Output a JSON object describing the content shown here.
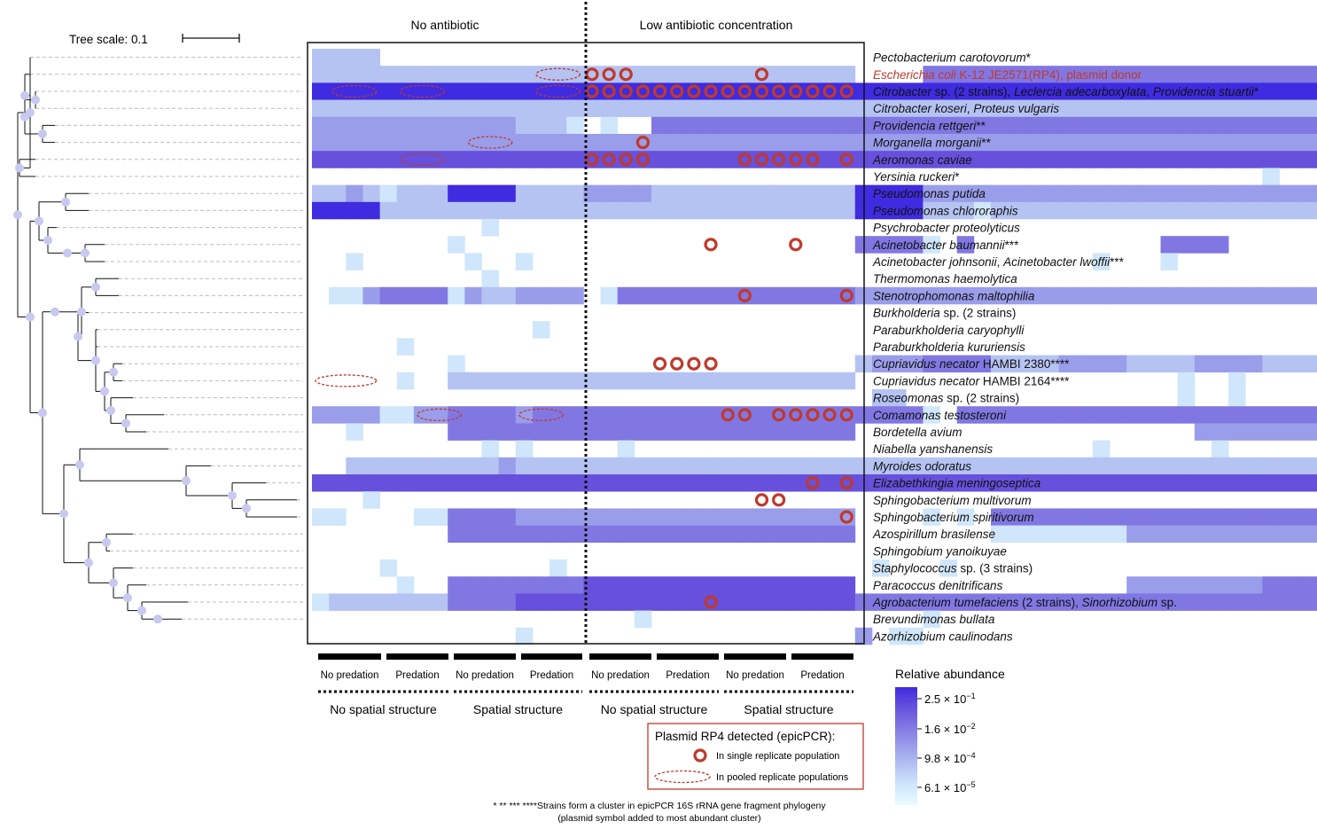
{
  "colors": {
    "scale": [
      "#e9fcff",
      "#cfe6fb",
      "#b5c3f3",
      "#9a9dea",
      "#8177e2",
      "#6650dc",
      "#3f2be0"
    ],
    "heatmap_border": "#111111",
    "plasmid_marker": "#c0392b",
    "highlight_text": "#c0392b",
    "tree_node": "#c8c8f0",
    "tree_guide": "#bbbbbb"
  },
  "tree": {
    "scale_label": "Tree scale: 0.1"
  },
  "chart_data": {
    "type": "heatmap",
    "condition_labels": [
      "No antibiotic",
      "Low antibiotic concentration"
    ],
    "predation_labels": [
      "No predation",
      "Predation",
      "No predation",
      "Predation",
      "No predation",
      "Predation",
      "No predation",
      "Predation"
    ],
    "structure_labels": [
      "No spatial structure",
      "Spatial structure",
      "No spatial structure",
      "Spatial structure"
    ],
    "replicates_per_treatment": 4,
    "legend": {
      "title": "Relative abundance",
      "tick_labels": [
        {
          "mantissa": "2.5 × 10",
          "exponent": "−1"
        },
        {
          "mantissa": "1.6 × 10",
          "exponent": "−2"
        },
        {
          "mantissa": "9.8 × 10",
          "exponent": "−4"
        },
        {
          "mantissa": "6.1 × 10",
          "exponent": "−5"
        }
      ]
    },
    "plasmid_legend": {
      "title": "Plasmid RP4 detected (epicPCR):",
      "single": "In single replicate population",
      "pooled": "In pooled replicate populations"
    },
    "footnote": [
      "* ** *** ****Strains form a cluster in epicPCR 16S rRNA gene fragment phylogeny",
      "(plasmid symbol added to most abundant cluster)"
    ],
    "rows": [
      {
        "parts": [
          {
            "t": "Pectobacterium carotovorum",
            "i": true
          },
          {
            "t": "*",
            "i": false
          }
        ],
        "highlight": false,
        "cells": "2222000000000000000000000000000000000000000000000000000000000000",
        "single": [],
        "pooled": []
      },
      {
        "parts": [
          {
            "t": "Escherichia coli",
            "i": true
          },
          {
            "t": " K-12 JE2571(RP4), plasmid donor",
            "i": false
          }
        ],
        "highlight": true,
        "cells": "2222222222222222222222222222222200004444444444444444444444444444",
        "single": [
          16,
          17,
          18,
          26
        ],
        "pooled": [
          [
            13,
            15
          ]
        ]
      },
      {
        "parts": [
          {
            "t": "Citrobacter",
            "i": true
          },
          {
            "t": " sp. (2 strains), ",
            "i": false
          },
          {
            "t": "Leclercia adecarboxylata",
            "i": true
          },
          {
            "t": ", ",
            "i": false
          },
          {
            "t": "Providencia stuartii",
            "i": true
          },
          {
            "t": "*",
            "i": false
          }
        ],
        "highlight": false,
        "cells": "6666666666666666666666666666666666666666666666666666666666666666",
        "single": [
          16,
          17,
          18,
          19,
          20,
          21,
          22,
          23,
          24,
          25,
          26,
          27,
          28,
          29,
          30,
          31
        ],
        "pooled": [
          [
            1,
            3
          ],
          [
            5,
            7
          ],
          [
            13,
            15
          ]
        ]
      },
      {
        "parts": [
          {
            "t": "Citrobacter koseri",
            "i": true
          },
          {
            "t": ", ",
            "i": false
          },
          {
            "t": "Proteus vulgaris",
            "i": true
          }
        ],
        "highlight": false,
        "cells": "2222222222222222222222222222222222222222222222222222222222222222",
        "single": [],
        "pooled": []
      },
      {
        "parts": [
          {
            "t": "Providencia rettgeri",
            "i": true
          },
          {
            "t": "**",
            "i": false
          }
        ],
        "highlight": false,
        "cells": "3333333333332221010044444444444444444444444444444444444444444444",
        "single": [],
        "pooled": []
      },
      {
        "parts": [
          {
            "t": "Morganella morganii",
            "i": true
          },
          {
            "t": "**",
            "i": false
          }
        ],
        "highlight": false,
        "cells": "3333333333333333333333333333333333333333333333333333333333333333",
        "single": [
          19
        ],
        "pooled": [
          [
            9,
            11
          ]
        ]
      },
      {
        "parts": [
          {
            "t": "Aeromonas caviae",
            "i": true
          }
        ],
        "highlight": false,
        "cells": "5555555555555555555555555555555555555555555555555555555555555555",
        "single": [
          16,
          17,
          18,
          19,
          25,
          26,
          27,
          28,
          29,
          31
        ],
        "pooled": [
          [
            5,
            7
          ]
        ]
      },
      {
        "parts": [
          {
            "t": "Yersinia ruckeri",
            "i": true
          },
          {
            "t": "*",
            "i": false
          }
        ],
        "highlight": false,
        "cells": "0000000000000000000000000000000000000000000000000000000010000000",
        "single": [],
        "pooled": []
      },
      {
        "parts": [
          {
            "t": "Pseudomonas putida",
            "i": true
          }
        ],
        "highlight": false,
        "cells": "2232122266662222333322222222222266663333333333333333333333333333",
        "single": [],
        "pooled": []
      },
      {
        "parts": [
          {
            "t": "Pseudomonas chlororaphis",
            "i": true
          }
        ],
        "highlight": false,
        "cells": "6666222222222222222222222222222266662221222222222222222222222222",
        "single": [],
        "pooled": []
      },
      {
        "parts": [
          {
            "t": "Psychrobacter proteolyticus",
            "i": true
          }
        ],
        "highlight": false,
        "cells": "0000000000100000000000000000000000000000000000000000000000000000",
        "single": [],
        "pooled": []
      },
      {
        "parts": [
          {
            "t": "Acinetobacter baumannii",
            "i": true
          },
          {
            "t": "***",
            "i": false
          }
        ],
        "highlight": false,
        "cells": "0000000010000000000000000000000044441040000000000044440000000000",
        "single": [
          23,
          28
        ],
        "pooled": []
      },
      {
        "parts": [
          {
            "t": "Acinetobacter johnsonii",
            "i": true
          },
          {
            "t": ", ",
            "i": false
          },
          {
            "t": "Acinetobacter lwoffii",
            "i": true
          },
          {
            "t": "***",
            "i": false
          }
        ],
        "highlight": false,
        "cells": "0010000001001000000000000000000000000000000000100010000000000000",
        "single": [],
        "pooled": []
      },
      {
        "parts": [
          {
            "t": "Thermomonas haemolytica",
            "i": true
          }
        ],
        "highlight": false,
        "cells": "0000000000100000000000000000000000000000000000000000000000000000",
        "single": [],
        "pooled": []
      },
      {
        "parts": [
          {
            "t": "Stenotrophomonas maltophilia",
            "i": true
          }
        ],
        "highlight": false,
        "cells": "0113444413223333014444444444444433333333333333333333333333333333",
        "single": [
          25,
          31
        ],
        "pooled": []
      },
      {
        "parts": [
          {
            "t": "Burkholderia",
            "i": true
          },
          {
            "t": " sp. (2 strains)",
            "i": false
          }
        ],
        "highlight": false,
        "cells": "0000000000000000000000000000000000000000000000000000000000000011",
        "single": [],
        "pooled": []
      },
      {
        "parts": [
          {
            "t": "Paraburkholderia caryophylli",
            "i": true
          }
        ],
        "highlight": false,
        "cells": "0000000000000100000000000000000000000000000000000000000000000000",
        "single": [],
        "pooled": []
      },
      {
        "parts": [
          {
            "t": "Paraburkholderia kururiensis",
            "i": true
          }
        ],
        "highlight": false,
        "cells": "0000010000000000000000000000000000000000000000000000000000000000",
        "single": [],
        "pooled": []
      },
      {
        "parts": [
          {
            "t": "Cupriavidus necator",
            "i": true
          },
          {
            "t": " HAMBI 2380****",
            "i": false
          }
        ],
        "highlight": false,
        "cells": "0000000010000000000000000000000023334444222233332222333322223333",
        "single": [
          20,
          21,
          22,
          23
        ],
        "pooled": []
      },
      {
        "parts": [
          {
            "t": "Cupriavidus necator",
            "i": true
          },
          {
            "t": " HAMBI 2164****",
            "i": false
          }
        ],
        "highlight": false,
        "cells": "0000010022222222222222222222222200000000000000000001001000000000",
        "single": [],
        "pooled": [
          [
            0,
            3
          ]
        ]
      },
      {
        "parts": [
          {
            "t": "Roseomonas",
            "i": true
          },
          {
            "t": " sp. (2 strains)",
            "i": false
          }
        ],
        "highlight": false,
        "cells": "0000000000000000000000000000000002200000000000000001001000000000",
        "single": [],
        "pooled": []
      },
      {
        "parts": [
          {
            "t": "Comamonas testosteroni",
            "i": true
          }
        ],
        "highlight": false,
        "cells": "3333113344443444444444444444444444441044444444444444444444444444",
        "single": [
          24,
          25,
          27,
          28,
          29,
          30,
          31
        ],
        "pooled": [
          [
            6,
            8
          ],
          [
            12,
            14
          ]
        ]
      },
      {
        "parts": [
          {
            "t": "Bordetella avium",
            "i": true
          }
        ],
        "highlight": false,
        "cells": "0010000044444444444444444444444400000000000000000000333333333333",
        "single": [],
        "pooled": []
      },
      {
        "parts": [
          {
            "t": "Niabella yanshanensis",
            "i": true
          }
        ],
        "highlight": false,
        "cells": "0000000000101000001000000000000000000000000000100000010000000000",
        "single": [],
        "pooled": []
      },
      {
        "parts": [
          {
            "t": "Myroides odoratus",
            "i": true
          }
        ],
        "highlight": false,
        "cells": "0022222222232222222222222222222222222222222222222222222222222222",
        "single": [],
        "pooled": []
      },
      {
        "parts": [
          {
            "t": "Elizabethkingia meningoseptica",
            "i": true
          }
        ],
        "highlight": false,
        "cells": "5555555555555555555555555555555555555555555555555555555555555555",
        "single": [
          29,
          31
        ],
        "pooled": []
      },
      {
        "parts": [
          {
            "t": "Sphingobacterium multivorum",
            "i": true
          }
        ],
        "highlight": false,
        "cells": "0001000000000000000000000000000000000000000000000000000000000000",
        "single": [
          26,
          27
        ],
        "pooled": []
      },
      {
        "parts": [
          {
            "t": "Sphingobacterium spiritivorum",
            "i": true
          }
        ],
        "highlight": false,
        "cells": "1100001144443333333333333333333300001010444444444444444444444444",
        "single": [
          31
        ],
        "pooled": []
      },
      {
        "parts": [
          {
            "t": "Azospirillum brasilense",
            "i": true
          }
        ],
        "highlight": false,
        "cells": "0000000044444444444444444444444400000000111111113333333333333333",
        "single": [],
        "pooled": []
      },
      {
        "parts": [
          {
            "t": "Sphingobium yanoikuyae",
            "i": true
          }
        ],
        "highlight": false,
        "cells": "0000000000000000000000000000000000000000000000000000000000000000",
        "single": [],
        "pooled": []
      },
      {
        "parts": [
          {
            "t": "Staphylococcus",
            "i": true
          },
          {
            "t": " sp. (3 strains)",
            "i": false
          }
        ],
        "highlight": false,
        "cells": "0000100000000010000000000000000001000100000000000000000000000000",
        "single": [],
        "pooled": []
      },
      {
        "parts": [
          {
            "t": "Paracoccus denitrificans",
            "i": true
          }
        ],
        "highlight": false,
        "cells": "0000010044444444555555555555555500000000000000003333333344444444",
        "single": [],
        "pooled": []
      },
      {
        "parts": [
          {
            "t": "Agrobacterium tumefaciens",
            "i": true
          },
          {
            "t": " (2 strains), ",
            "i": false
          },
          {
            "t": "Sinorhizobium",
            "i": true
          },
          {
            "t": " sp.",
            "i": false
          }
        ],
        "highlight": false,
        "cells": "1222222244445555555555555555555544444444444444444444444444444444",
        "single": [
          23
        ],
        "pooled": []
      },
      {
        "parts": [
          {
            "t": "Brevundimonas bullata",
            "i": true
          }
        ],
        "highlight": false,
        "cells": "0000000000000000000100000000000000001000000000000000000000000000",
        "single": [],
        "pooled": []
      },
      {
        "parts": [
          {
            "t": "Azorhizobium caulinodans",
            "i": true
          }
        ],
        "highlight": false,
        "cells": "0000000000001000000000000000000030110000000000000000000000000000",
        "single": [],
        "pooled": []
      }
    ]
  }
}
